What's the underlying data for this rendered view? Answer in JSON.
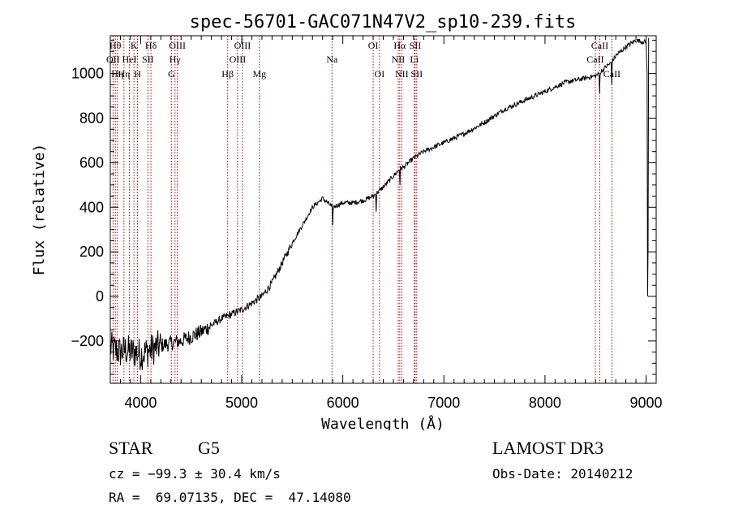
{
  "chart_data": {
    "type": "line",
    "title": "spec-56701-GAC071N47V2_sp10-239.fits",
    "xlabel": "Wavelength (Å)",
    "ylabel": "Flux (relative)",
    "xlim": [
      3700,
      9100
    ],
    "ylim": [
      -390,
      1170
    ],
    "xticks": [
      4000,
      5000,
      6000,
      7000,
      8000,
      9000
    ],
    "xtick_labels": [
      "4000",
      "5000",
      "6000",
      "7000",
      "8000",
      "9000"
    ],
    "yticks": [
      -200,
      0,
      200,
      400,
      600,
      800,
      1000
    ],
    "ytick_labels": [
      "−200",
      "0",
      "200",
      "400",
      "600",
      "800",
      "1000"
    ],
    "series": [
      {
        "name": "spectrum",
        "x": [
          3700,
          3750,
          3800,
          3850,
          3900,
          3950,
          4000,
          4050,
          4100,
          4150,
          4200,
          4300,
          4400,
          4500,
          4600,
          4700,
          4800,
          4900,
          5000,
          5100,
          5200,
          5300,
          5400,
          5500,
          5600,
          5700,
          5800,
          5850,
          5900,
          5950,
          6000,
          6100,
          6200,
          6300,
          6350,
          6400,
          6500,
          6560,
          6600,
          6700,
          6800,
          7000,
          7200,
          7400,
          7600,
          7700,
          7800,
          8000,
          8200,
          8400,
          8500,
          8540,
          8600,
          8660,
          8700,
          8800,
          8900,
          9000
        ],
        "y": [
          -230,
          -240,
          -250,
          -240,
          -250,
          -250,
          -260,
          -250,
          -240,
          -230,
          -220,
          -210,
          -200,
          -180,
          -160,
          -130,
          -100,
          -80,
          -60,
          -30,
          0,
          60,
          150,
          240,
          320,
          400,
          440,
          420,
          400,
          410,
          420,
          420,
          430,
          450,
          470,
          490,
          540,
          570,
          580,
          620,
          650,
          690,
          730,
          780,
          840,
          860,
          880,
          920,
          960,
          980,
          990,
          1000,
          1030,
          1050,
          1080,
          1120,
          1150,
          1140
        ],
        "sharp_features": [
          {
            "x": 5900,
            "y": 320
          },
          {
            "x": 6330,
            "y": 380
          },
          {
            "x": 6563,
            "y": 500
          },
          {
            "x": 8542,
            "y": 910
          },
          {
            "x": 8662,
            "y": 950
          },
          {
            "x": 9010,
            "y": 1000
          },
          {
            "x": 9015,
            "y": 0
          },
          {
            "x": 9020,
            "y": 220
          },
          {
            "x": 9025,
            "y": 1160
          }
        ]
      }
    ],
    "line_markers": [
      {
        "wavelength": 3727,
        "label": "OII",
        "row": 1
      },
      {
        "wavelength": 3750,
        "label": "Hθ",
        "row": 0
      },
      {
        "wavelength": 3770,
        "label": "Hη",
        "row": 2
      },
      {
        "wavelength": 3835,
        "label": "Hη",
        "row": 2
      },
      {
        "wavelength": 3889,
        "label": "HeI",
        "row": 1
      },
      {
        "wavelength": 3934,
        "label": "K",
        "row": 0
      },
      {
        "wavelength": 3969,
        "label": "H",
        "row": 2
      },
      {
        "wavelength": 4072,
        "label": "SII",
        "row": 1
      },
      {
        "wavelength": 4102,
        "label": "Hδ",
        "row": 0
      },
      {
        "wavelength": 4304,
        "label": "G",
        "row": 2
      },
      {
        "wavelength": 4340,
        "label": "Hγ",
        "row": 1
      },
      {
        "wavelength": 4363,
        "label": "OIII",
        "row": 0
      },
      {
        "wavelength": 4861,
        "label": "Hβ",
        "row": 2
      },
      {
        "wavelength": 4959,
        "label": "OIII",
        "row": 1
      },
      {
        "wavelength": 5007,
        "label": "OIII",
        "row": 0
      },
      {
        "wavelength": 5175,
        "label": "Mg",
        "row": 2
      },
      {
        "wavelength": 5893,
        "label": "Na",
        "row": 1
      },
      {
        "wavelength": 6300,
        "label": "OI",
        "row": 0
      },
      {
        "wavelength": 6363,
        "label": "OI",
        "row": 2
      },
      {
        "wavelength": 6548,
        "label": "NII",
        "row": 1
      },
      {
        "wavelength": 6563,
        "label": "Hα",
        "row": 0
      },
      {
        "wavelength": 6583,
        "label": "NII",
        "row": 2
      },
      {
        "wavelength": 6707,
        "label": "Li",
        "row": 1
      },
      {
        "wavelength": 6716,
        "label": "SII",
        "row": 0
      },
      {
        "wavelength": 6731,
        "label": "SII",
        "row": 2
      },
      {
        "wavelength": 8498,
        "label": "CaII",
        "row": 1
      },
      {
        "wavelength": 8542,
        "label": "CaII",
        "row": 0
      },
      {
        "wavelength": 8662,
        "label": "CaII",
        "row": 2
      }
    ]
  },
  "info": {
    "class": "STAR",
    "subclass": "G5",
    "survey": "LAMOST DR3",
    "redshift": "cz = −99.3 ± 30.4 km/s",
    "obs_date": "Obs-Date: 20140212",
    "coords": "RA =  69.07135, DEC =  47.14080"
  },
  "colors": {
    "axis": "#000000",
    "spectrum": "#000000",
    "marker": "#c00000"
  }
}
